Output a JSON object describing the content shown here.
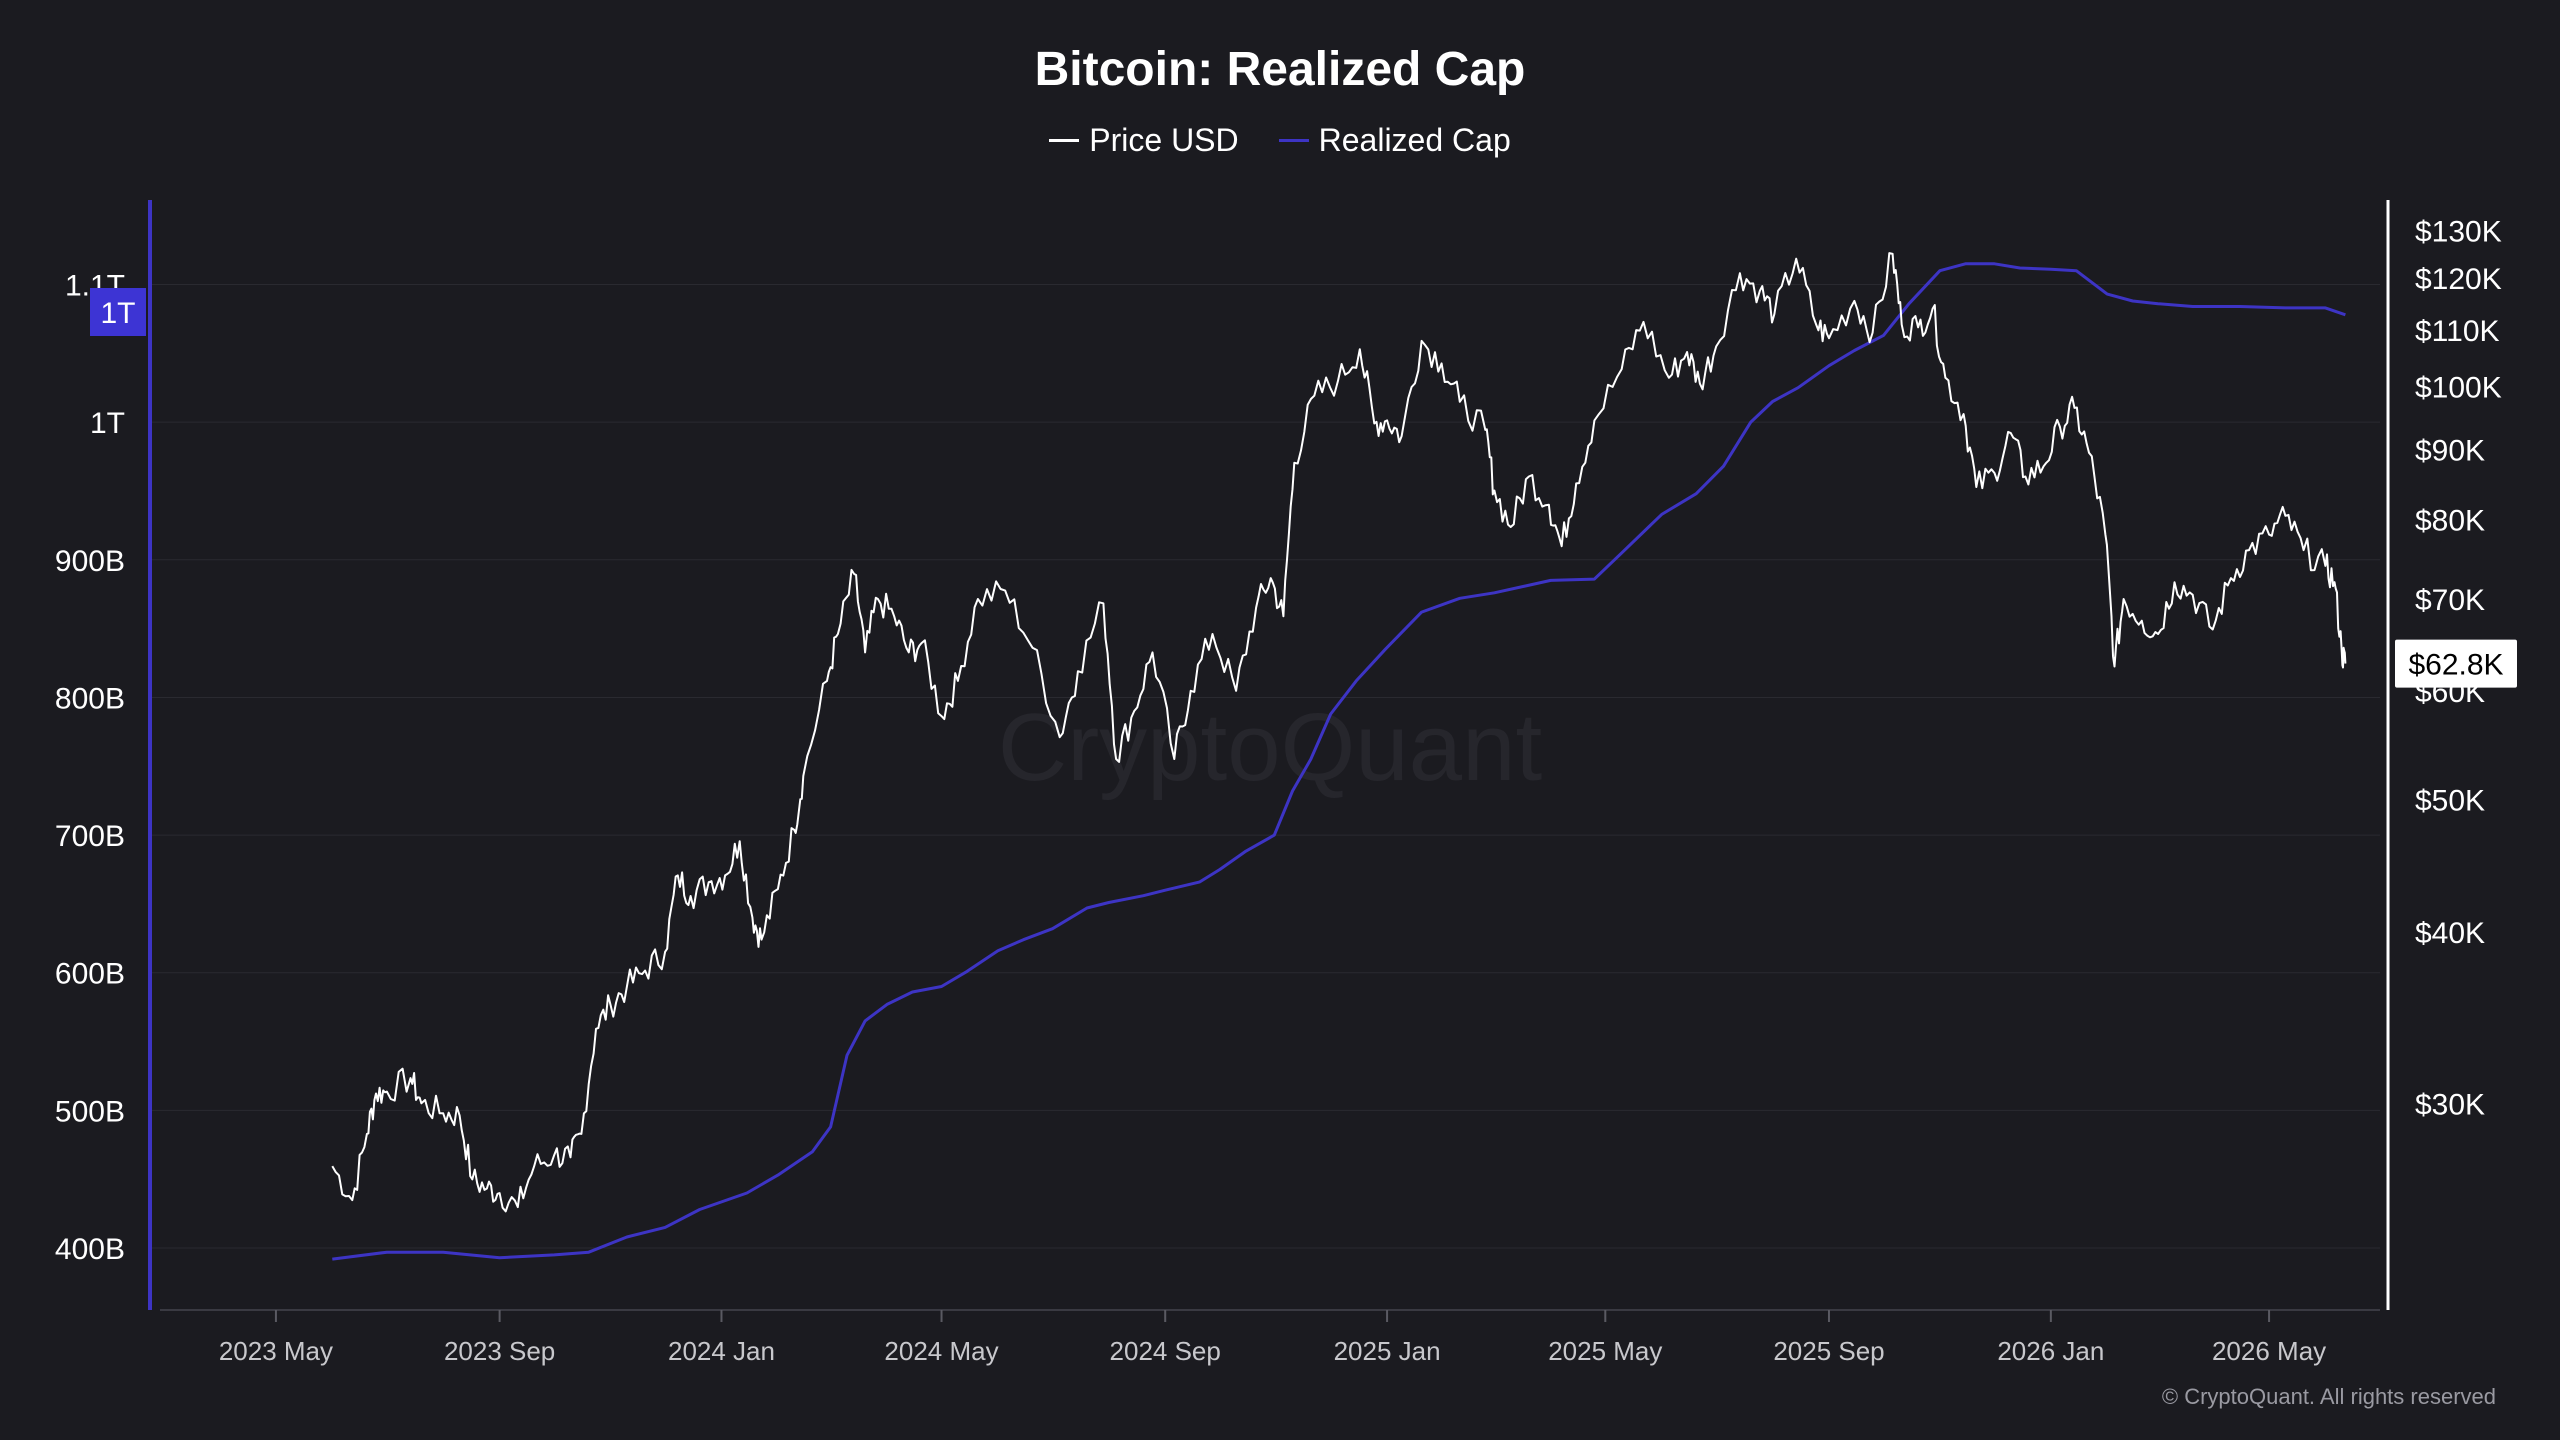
{
  "colors": {
    "background": "#1b1b20",
    "price": "#ffffff",
    "realized": "#3d34c4",
    "badge": "#3d34d4",
    "grid": "#2a2a30"
  },
  "watermark": "CryptoQuant",
  "copyright": "© CryptoQuant. All rights reserved",
  "chart_data": {
    "type": "line",
    "title": "Bitcoin: Realized Cap",
    "legend_position": "top-center",
    "grid": true,
    "x_axis": {
      "type": "date",
      "range": [
        "2023-03-01",
        "2026-07-01"
      ],
      "ticks": [
        {
          "date": "2023-05-01",
          "label": "2023 May"
        },
        {
          "date": "2023-09-01",
          "label": "2023 Sep"
        },
        {
          "date": "2024-01-01",
          "label": "2024 Jan"
        },
        {
          "date": "2024-05-01",
          "label": "2024 May"
        },
        {
          "date": "2024-09-01",
          "label": "2024 Sep"
        },
        {
          "date": "2025-01-01",
          "label": "2025 Jan"
        },
        {
          "date": "2025-05-01",
          "label": "2025 May"
        },
        {
          "date": "2025-09-01",
          "label": "2025 Sep"
        },
        {
          "date": "2026-01-01",
          "label": "2026 Jan"
        },
        {
          "date": "2026-05-01",
          "label": "2026 May"
        }
      ]
    },
    "y_axis_left": {
      "series": "Realized Cap",
      "ylim": [
        355,
        1165
      ],
      "ticks": [
        {
          "value": 400,
          "label": "400B"
        },
        {
          "value": 500,
          "label": "500B"
        },
        {
          "value": 600,
          "label": "600B"
        },
        {
          "value": 700,
          "label": "700B"
        },
        {
          "value": 800,
          "label": "800B"
        },
        {
          "value": 900,
          "label": "900B"
        },
        {
          "value": 1000,
          "label": "1T"
        },
        {
          "value": 1100,
          "label": "1.1T"
        }
      ],
      "badge": {
        "value": 1080,
        "label": "1T"
      }
    },
    "y_axis_right": {
      "series": "Price USD",
      "scale": "log",
      "ylim": [
        21.2,
        138
      ],
      "ticks": [
        {
          "value": 30,
          "label": "$30K"
        },
        {
          "value": 40,
          "label": "$40K"
        },
        {
          "value": 50,
          "label": "$50K"
        },
        {
          "value": 60,
          "label": "$60K"
        },
        {
          "value": 70,
          "label": "$70K"
        },
        {
          "value": 80,
          "label": "$80K"
        },
        {
          "value": 90,
          "label": "$90K"
        },
        {
          "value": 100,
          "label": "$100K"
        },
        {
          "value": 110,
          "label": "$110K"
        },
        {
          "value": 120,
          "label": "$120K"
        },
        {
          "value": 130,
          "label": "$130K"
        }
      ],
      "badge": {
        "value": 62.8,
        "label": "$62.8K"
      }
    },
    "series": [
      {
        "name": "Price USD",
        "axis": "right",
        "unit": "thousand USD",
        "points": [
          [
            "2023-06-01",
            27.0
          ],
          [
            "2023-06-12",
            25.5
          ],
          [
            "2023-06-20",
            28.5
          ],
          [
            "2023-06-25",
            30.5
          ],
          [
            "2023-07-01",
            30.6
          ],
          [
            "2023-07-14",
            31.3
          ],
          [
            "2023-07-20",
            30.0
          ],
          [
            "2023-08-01",
            29.5
          ],
          [
            "2023-08-10",
            29.4
          ],
          [
            "2023-08-17",
            26.4
          ],
          [
            "2023-08-25",
            26.0
          ],
          [
            "2023-09-01",
            25.8
          ],
          [
            "2023-09-11",
            25.2
          ],
          [
            "2023-09-20",
            27.0
          ],
          [
            "2023-10-01",
            27.5
          ],
          [
            "2023-10-10",
            27.4
          ],
          [
            "2023-10-16",
            28.5
          ],
          [
            "2023-10-24",
            34.0
          ],
          [
            "2023-11-01",
            35.4
          ],
          [
            "2023-11-10",
            36.5
          ],
          [
            "2023-11-20",
            37.5
          ],
          [
            "2023-12-01",
            38.7
          ],
          [
            "2023-12-08",
            44.0
          ],
          [
            "2023-12-15",
            42.5
          ],
          [
            "2023-12-25",
            43.5
          ],
          [
            "2024-01-03",
            44.0
          ],
          [
            "2024-01-11",
            46.6
          ],
          [
            "2024-01-18",
            41.0
          ],
          [
            "2024-01-23",
            39.5
          ],
          [
            "2024-02-01",
            43.0
          ],
          [
            "2024-02-10",
            47.5
          ],
          [
            "2024-02-15",
            52.0
          ],
          [
            "2024-02-28",
            61.0
          ],
          [
            "2024-03-05",
            66.0
          ],
          [
            "2024-03-14",
            73.0
          ],
          [
            "2024-03-20",
            64.0
          ],
          [
            "2024-03-27",
            70.0
          ],
          [
            "2024-04-05",
            68.0
          ],
          [
            "2024-04-13",
            64.0
          ],
          [
            "2024-04-20",
            65.0
          ],
          [
            "2024-05-01",
            57.5
          ],
          [
            "2024-05-10",
            61.0
          ],
          [
            "2024-05-21",
            70.0
          ],
          [
            "2024-06-05",
            71.0
          ],
          [
            "2024-06-20",
            64.5
          ],
          [
            "2024-07-05",
            55.5
          ],
          [
            "2024-07-15",
            62.0
          ],
          [
            "2024-07-29",
            69.5
          ],
          [
            "2024-08-05",
            53.5
          ],
          [
            "2024-08-15",
            58.0
          ],
          [
            "2024-08-25",
            64.0
          ],
          [
            "2024-09-06",
            53.5
          ],
          [
            "2024-09-15",
            60.0
          ],
          [
            "2024-09-27",
            66.0
          ],
          [
            "2024-10-10",
            60.0
          ],
          [
            "2024-10-21",
            69.0
          ],
          [
            "2024-10-29",
            72.5
          ],
          [
            "2024-11-05",
            68.0
          ],
          [
            "2024-11-11",
            88.0
          ],
          [
            "2024-11-22",
            98.5
          ],
          [
            "2024-12-05",
            101.0
          ],
          [
            "2024-12-17",
            106.5
          ],
          [
            "2024-12-25",
            94.0
          ],
          [
            "2025-01-01",
            94.5
          ],
          [
            "2025-01-09",
            92.0
          ],
          [
            "2025-01-20",
            108.0
          ],
          [
            "2025-01-31",
            104.0
          ],
          [
            "2025-02-10",
            97.5
          ],
          [
            "2025-02-24",
            93.0
          ],
          [
            "2025-03-01",
            84.0
          ],
          [
            "2025-03-10",
            79.0
          ],
          [
            "2025-03-20",
            86.0
          ],
          [
            "2025-03-31",
            82.0
          ],
          [
            "2025-04-07",
            76.5
          ],
          [
            "2025-04-15",
            85.0
          ],
          [
            "2025-04-25",
            94.5
          ],
          [
            "2025-05-10",
            103.0
          ],
          [
            "2025-05-22",
            111.5
          ],
          [
            "2025-06-05",
            101.5
          ],
          [
            "2025-06-15",
            106.0
          ],
          [
            "2025-06-22",
            100.5
          ],
          [
            "2025-07-01",
            107.0
          ],
          [
            "2025-07-14",
            121.0
          ],
          [
            "2025-07-25",
            117.5
          ],
          [
            "2025-08-02",
            113.0
          ],
          [
            "2025-08-14",
            124.0
          ],
          [
            "2025-08-25",
            111.0
          ],
          [
            "2025-09-01",
            108.5
          ],
          [
            "2025-09-15",
            115.5
          ],
          [
            "2025-09-25",
            109.5
          ],
          [
            "2025-10-06",
            125.0
          ],
          [
            "2025-10-11",
            111.0
          ],
          [
            "2025-10-20",
            110.5
          ],
          [
            "2025-10-28",
            114.0
          ],
          [
            "2025-11-04",
            101.5
          ],
          [
            "2025-11-14",
            95.5
          ],
          [
            "2025-11-21",
            84.5
          ],
          [
            "2025-12-01",
            86.5
          ],
          [
            "2025-12-10",
            92.5
          ],
          [
            "2025-12-18",
            86.0
          ],
          [
            "2025-12-28",
            87.5
          ],
          [
            "2026-01-06",
            93.5
          ],
          [
            "2026-01-14",
            96.5
          ],
          [
            "2026-01-22",
            89.5
          ],
          [
            "2026-01-31",
            78.0
          ],
          [
            "2026-02-05",
            62.5
          ],
          [
            "2026-02-10",
            70.0
          ],
          [
            "2026-02-20",
            67.5
          ],
          [
            "2026-03-01",
            66.0
          ],
          [
            "2026-03-10",
            72.0
          ],
          [
            "2026-03-20",
            70.5
          ],
          [
            "2026-03-31",
            66.5
          ],
          [
            "2026-04-10",
            72.5
          ],
          [
            "2026-04-20",
            76.0
          ],
          [
            "2026-05-01",
            78.0
          ],
          [
            "2026-05-10",
            80.5
          ],
          [
            "2026-05-20",
            76.0
          ],
          [
            "2026-06-01",
            74.0
          ],
          [
            "2026-06-06",
            72.0
          ],
          [
            "2026-06-10",
            64.0
          ],
          [
            "2026-06-12",
            62.8
          ]
        ]
      },
      {
        "name": "Realized Cap",
        "axis": "left",
        "unit": "billion USD",
        "points": [
          [
            "2023-06-01",
            392
          ],
          [
            "2023-07-01",
            397
          ],
          [
            "2023-08-01",
            397
          ],
          [
            "2023-09-01",
            393
          ],
          [
            "2023-10-01",
            395
          ],
          [
            "2023-10-20",
            397
          ],
          [
            "2023-11-10",
            408
          ],
          [
            "2023-12-01",
            415
          ],
          [
            "2023-12-20",
            428
          ],
          [
            "2024-01-15",
            440
          ],
          [
            "2024-02-01",
            453
          ],
          [
            "2024-02-20",
            470
          ],
          [
            "2024-03-01",
            488
          ],
          [
            "2024-03-10",
            540
          ],
          [
            "2024-03-20",
            565
          ],
          [
            "2024-04-01",
            577
          ],
          [
            "2024-04-15",
            586
          ],
          [
            "2024-05-01",
            590
          ],
          [
            "2024-05-15",
            601
          ],
          [
            "2024-06-01",
            616
          ],
          [
            "2024-06-15",
            624
          ],
          [
            "2024-07-01",
            632
          ],
          [
            "2024-07-20",
            647
          ],
          [
            "2024-08-01",
            651
          ],
          [
            "2024-08-20",
            656
          ],
          [
            "2024-09-01",
            660
          ],
          [
            "2024-09-20",
            666
          ],
          [
            "2024-10-01",
            675
          ],
          [
            "2024-10-15",
            688
          ],
          [
            "2024-10-31",
            700
          ],
          [
            "2024-11-10",
            732
          ],
          [
            "2024-11-20",
            755
          ],
          [
            "2024-12-01",
            788
          ],
          [
            "2024-12-15",
            812
          ],
          [
            "2024-12-31",
            835
          ],
          [
            "2025-01-20",
            862
          ],
          [
            "2025-02-10",
            872
          ],
          [
            "2025-03-01",
            876
          ],
          [
            "2025-04-01",
            885
          ],
          [
            "2025-04-25",
            886
          ],
          [
            "2025-05-10",
            905
          ],
          [
            "2025-06-01",
            933
          ],
          [
            "2025-06-20",
            948
          ],
          [
            "2025-07-05",
            968
          ],
          [
            "2025-07-20",
            1000
          ],
          [
            "2025-08-01",
            1015
          ],
          [
            "2025-08-15",
            1025
          ],
          [
            "2025-09-01",
            1041
          ],
          [
            "2025-09-15",
            1052
          ],
          [
            "2025-10-01",
            1063
          ],
          [
            "2025-10-15",
            1086
          ],
          [
            "2025-11-01",
            1110
          ],
          [
            "2025-11-15",
            1115
          ],
          [
            "2025-12-01",
            1115
          ],
          [
            "2025-12-15",
            1112
          ],
          [
            "2026-01-01",
            1111
          ],
          [
            "2026-01-15",
            1110
          ],
          [
            "2026-02-01",
            1093
          ],
          [
            "2026-02-15",
            1088
          ],
          [
            "2026-03-01",
            1086
          ],
          [
            "2026-03-20",
            1084
          ],
          [
            "2026-04-15",
            1084
          ],
          [
            "2026-05-10",
            1083
          ],
          [
            "2026-06-01",
            1083
          ],
          [
            "2026-06-12",
            1078
          ]
        ]
      }
    ]
  }
}
